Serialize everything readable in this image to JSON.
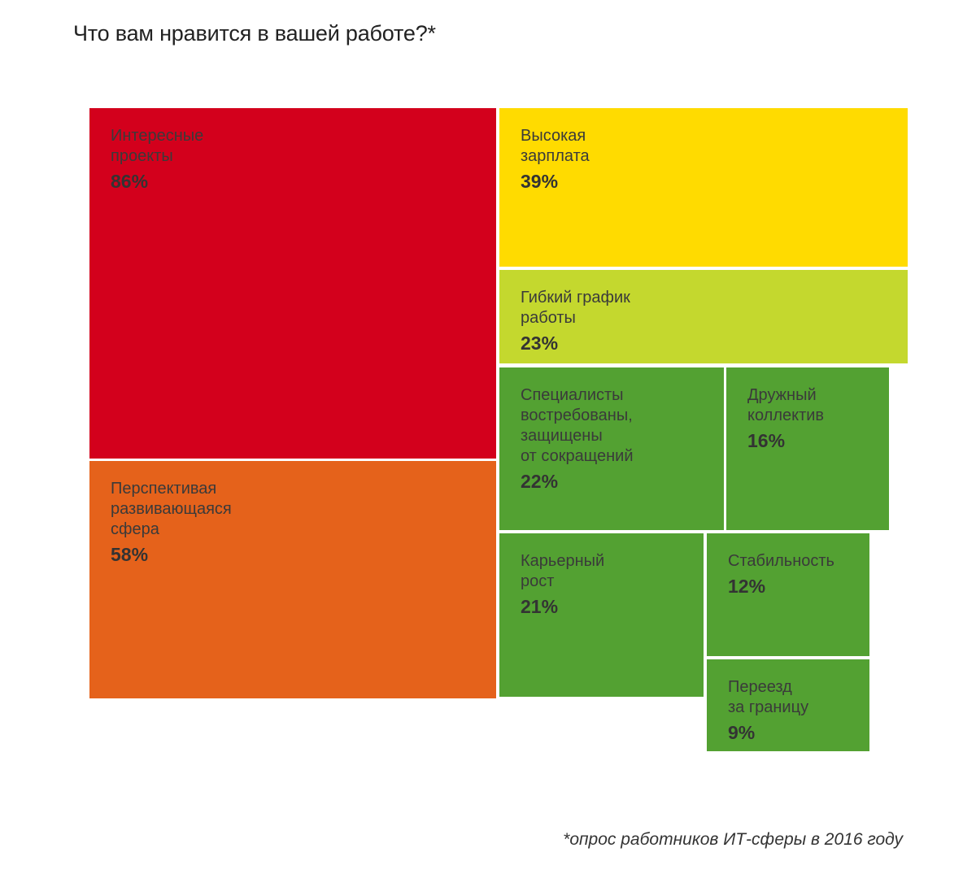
{
  "title": "Что вам нравится в вашей работе?*",
  "footnote": "*опрос работников ИТ-сферы в 2016 году",
  "chart_data": {
    "type": "treemap",
    "title": "Что вам нравится в вашей работе?*",
    "unit": "%",
    "items": [
      {
        "label": "Интересные\nпроекты",
        "value": 86,
        "value_label": "86%",
        "color": "#D3001C"
      },
      {
        "label": "Перспективая\nразвивающаяся\nсфера",
        "value": 58,
        "value_label": "58%",
        "color": "#E5621B"
      },
      {
        "label": "Высокая\nзарплата",
        "value": 39,
        "value_label": "39%",
        "color": "#FFDB00"
      },
      {
        "label": "Гибкий график\nработы",
        "value": 23,
        "value_label": "23%",
        "color": "#C4D82E"
      },
      {
        "label": "Специалисты\nвостребованы,\nзащищены\nот сокращений",
        "value": 22,
        "value_label": "22%",
        "color": "#53A132"
      },
      {
        "label": "Дружный\nколлектив",
        "value": 16,
        "value_label": "16%",
        "color": "#53A132"
      },
      {
        "label": "Карьерный\nрост",
        "value": 21,
        "value_label": "21%",
        "color": "#53A132"
      },
      {
        "label": "Стабильность",
        "value": 12,
        "value_label": "12%",
        "color": "#53A132"
      },
      {
        "label": "Переезд\nза границу",
        "value": 9,
        "value_label": "9%",
        "color": "#53A132"
      }
    ]
  }
}
